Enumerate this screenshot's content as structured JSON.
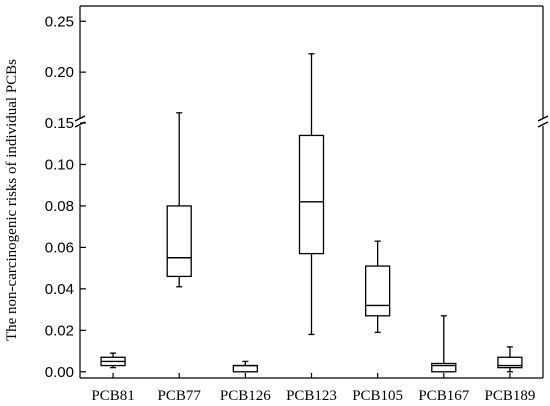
{
  "chart_data": {
    "type": "box",
    "title": "",
    "xlabel": "",
    "ylabel": "The non-carcinogenic risks of individual PCBs",
    "categories": [
      "PCB81",
      "PCB77",
      "PCB126",
      "PCB123",
      "PCB105",
      "PCB167",
      "PCB189"
    ],
    "boxes": [
      {
        "category": "PCB81",
        "min": 0.002,
        "q1": 0.003,
        "median": 0.005,
        "q3": 0.007,
        "max": 0.009
      },
      {
        "category": "PCB77",
        "min": 0.041,
        "q1": 0.046,
        "median": 0.055,
        "q3": 0.08,
        "max": 0.16
      },
      {
        "category": "PCB126",
        "min": 0.0,
        "q1": 0.0,
        "median": 0.003,
        "q3": 0.003,
        "max": 0.005
      },
      {
        "category": "PCB123",
        "min": 0.018,
        "q1": 0.057,
        "median": 0.082,
        "q3": 0.114,
        "max": 0.218
      },
      {
        "category": "PCB105",
        "min": 0.019,
        "q1": 0.027,
        "median": 0.032,
        "q3": 0.051,
        "max": 0.063
      },
      {
        "category": "PCB167",
        "min": 0.0,
        "q1": 0.0,
        "median": 0.003,
        "q3": 0.004,
        "max": 0.027
      },
      {
        "category": "PCB189",
        "min": 0.0,
        "q1": 0.002,
        "median": 0.003,
        "q3": 0.007,
        "max": 0.012
      }
    ],
    "y_axis": {
      "broken": true,
      "lower_segment": {
        "range": [
          -0.003,
          0.12
        ],
        "ticks": [
          "0.00",
          "0.02",
          "0.04",
          "0.06",
          "0.08",
          "0.10"
        ]
      },
      "upper_segment": {
        "range": [
          0.15,
          0.265
        ],
        "ticks": [
          "0.15",
          "0.20",
          "0.25"
        ]
      },
      "break_between": [
        0.12,
        0.15
      ]
    },
    "grid": false,
    "legend": "none"
  }
}
